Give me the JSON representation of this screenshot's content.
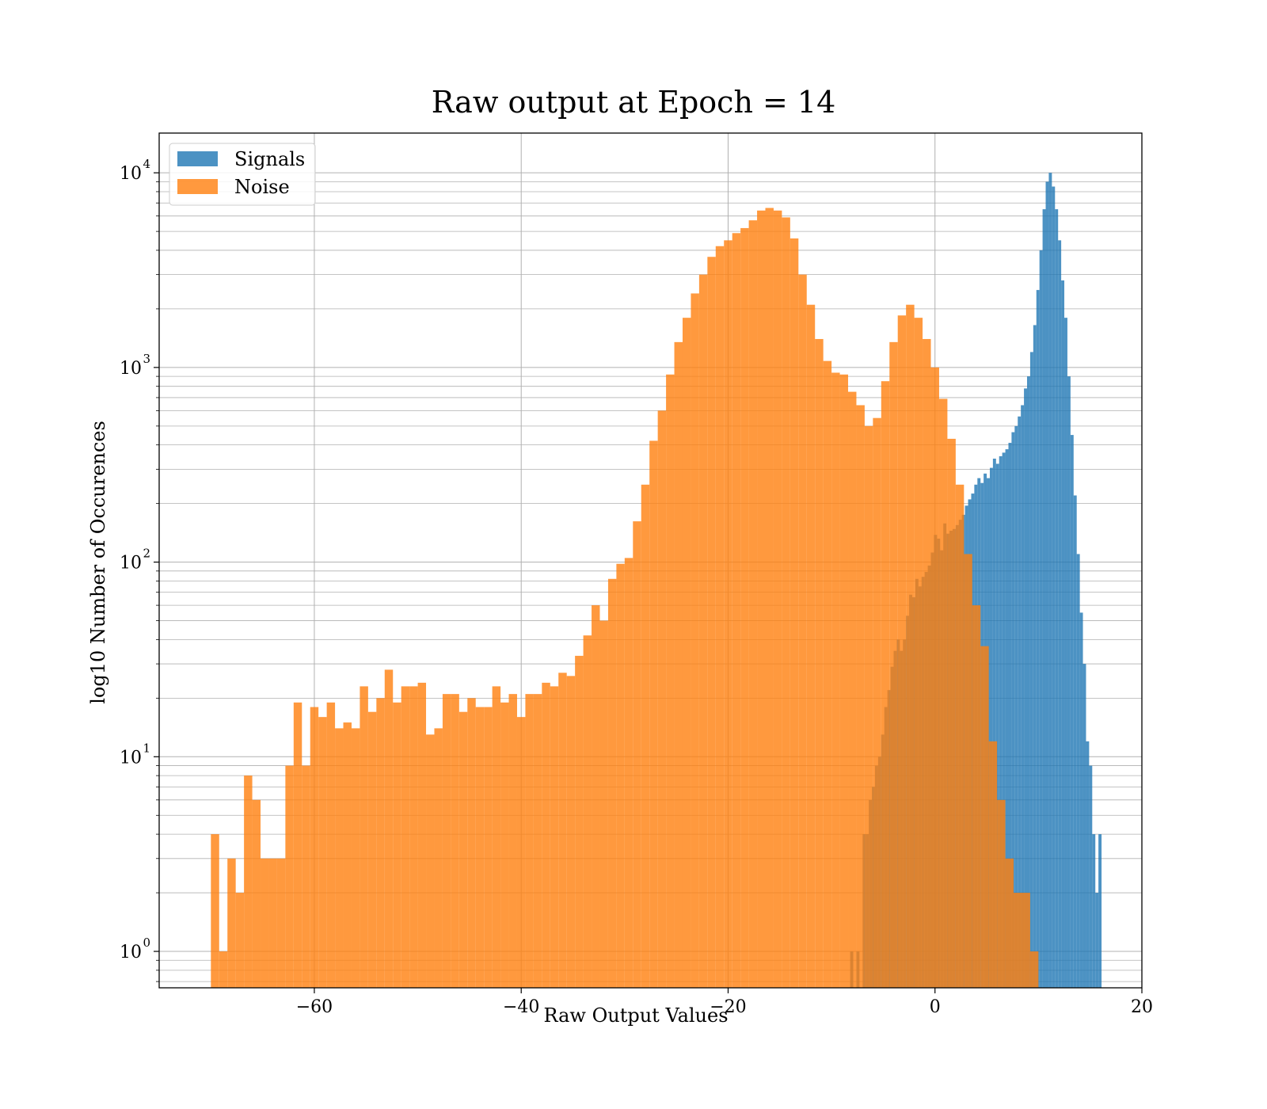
{
  "chart_data": {
    "type": "histogram",
    "title": "Raw output at Epoch = 14",
    "xlabel": "Raw Output Values",
    "ylabel": "log10 Number of Occurences",
    "xlim": [
      -75,
      20
    ],
    "ylim": [
      0.65,
      16000
    ],
    "yscale": "log",
    "grid": true,
    "legend_position": "upper left",
    "x_ticks": [
      {
        "value": -60,
        "label": "−60"
      },
      {
        "value": -40,
        "label": "−40"
      },
      {
        "value": -20,
        "label": "−20"
      },
      {
        "value": 0,
        "label": "0"
      },
      {
        "value": 20,
        "label": "20"
      }
    ],
    "y_ticks": [
      {
        "value": 1,
        "base": "10",
        "exp": "0"
      },
      {
        "value": 10,
        "base": "10",
        "exp": "1"
      },
      {
        "value": 100,
        "base": "10",
        "exp": "2"
      },
      {
        "value": 1000,
        "base": "10",
        "exp": "3"
      },
      {
        "value": 10000,
        "base": "10",
        "exp": "4"
      }
    ],
    "series": [
      {
        "name": "Signals",
        "color": "#1f77b4",
        "opacity": 0.8,
        "bins": [
          [
            -8.2,
            -7.9,
            1
          ],
          [
            -7.9,
            -7.6,
            0
          ],
          [
            -7.6,
            -7.3,
            1
          ],
          [
            -7.3,
            -7.0,
            0
          ],
          [
            -7.0,
            -6.7,
            4
          ],
          [
            -6.7,
            -6.4,
            4
          ],
          [
            -6.4,
            -6.1,
            6
          ],
          [
            -6.1,
            -5.8,
            7
          ],
          [
            -5.8,
            -5.5,
            9
          ],
          [
            -5.5,
            -5.2,
            10
          ],
          [
            -5.2,
            -4.9,
            13
          ],
          [
            -4.9,
            -4.6,
            18
          ],
          [
            -4.6,
            -4.3,
            22
          ],
          [
            -4.3,
            -4.0,
            29
          ],
          [
            -4.0,
            -3.7,
            35
          ],
          [
            -3.7,
            -3.4,
            40
          ],
          [
            -3.4,
            -3.1,
            35
          ],
          [
            -3.1,
            -2.8,
            40
          ],
          [
            -2.8,
            -2.5,
            53
          ],
          [
            -2.5,
            -2.2,
            68
          ],
          [
            -2.2,
            -1.9,
            66
          ],
          [
            -1.9,
            -1.6,
            82
          ],
          [
            -1.6,
            -1.3,
            75
          ],
          [
            -1.3,
            -1.0,
            84
          ],
          [
            -1.0,
            -0.7,
            89
          ],
          [
            -0.7,
            -0.4,
            96
          ],
          [
            -0.4,
            -0.1,
            112
          ],
          [
            -0.1,
            0.2,
            138
          ],
          [
            0.2,
            0.5,
            132
          ],
          [
            0.5,
            0.8,
            115
          ],
          [
            0.8,
            1.1,
            158
          ],
          [
            1.1,
            1.4,
            140
          ],
          [
            1.4,
            1.7,
            145
          ],
          [
            1.7,
            2.0,
            148
          ],
          [
            2.0,
            2.3,
            155
          ],
          [
            2.3,
            2.6,
            165
          ],
          [
            2.6,
            2.9,
            175
          ],
          [
            2.9,
            3.2,
            195
          ],
          [
            3.2,
            3.5,
            210
          ],
          [
            3.5,
            3.8,
            225
          ],
          [
            3.8,
            4.1,
            250
          ],
          [
            4.1,
            4.4,
            270
          ],
          [
            4.4,
            4.7,
            255
          ],
          [
            4.7,
            5.0,
            285
          ],
          [
            5.0,
            5.3,
            270
          ],
          [
            5.3,
            5.6,
            305
          ],
          [
            5.6,
            5.9,
            340
          ],
          [
            5.9,
            6.2,
            320
          ],
          [
            6.2,
            6.5,
            350
          ],
          [
            6.5,
            6.8,
            365
          ],
          [
            6.8,
            7.1,
            380
          ],
          [
            7.1,
            7.4,
            410
          ],
          [
            7.4,
            7.7,
            465
          ],
          [
            7.7,
            8.0,
            500
          ],
          [
            8.0,
            8.3,
            560
          ],
          [
            8.3,
            8.6,
            640
          ],
          [
            8.6,
            8.9,
            780
          ],
          [
            8.9,
            9.2,
            900
          ],
          [
            9.2,
            9.5,
            1200
          ],
          [
            9.5,
            9.8,
            1650
          ],
          [
            9.8,
            10.1,
            2500
          ],
          [
            10.1,
            10.4,
            4000
          ],
          [
            10.4,
            10.7,
            6500
          ],
          [
            10.7,
            11.0,
            9000
          ],
          [
            11.0,
            11.3,
            10000
          ],
          [
            11.3,
            11.6,
            8500
          ],
          [
            11.6,
            11.9,
            6500
          ],
          [
            11.9,
            12.2,
            4500
          ],
          [
            12.2,
            12.5,
            2800
          ],
          [
            12.5,
            12.8,
            1800
          ],
          [
            12.8,
            13.1,
            900
          ],
          [
            13.1,
            13.4,
            450
          ],
          [
            13.4,
            13.7,
            220
          ],
          [
            13.7,
            14.0,
            110
          ],
          [
            14.0,
            14.3,
            55
          ],
          [
            14.3,
            14.6,
            30
          ],
          [
            14.6,
            14.9,
            12
          ],
          [
            14.9,
            15.2,
            9
          ],
          [
            15.2,
            15.5,
            4
          ],
          [
            15.5,
            15.8,
            2
          ],
          [
            15.8,
            16.1,
            4
          ]
        ]
      },
      {
        "name": "Noise",
        "color": "#ff7f0e",
        "opacity": 0.8,
        "bins": [
          [
            -70.0,
            -69.2,
            4
          ],
          [
            -69.2,
            -68.4,
            1
          ],
          [
            -68.4,
            -67.6,
            3
          ],
          [
            -67.6,
            -66.8,
            2
          ],
          [
            -66.8,
            -66.0,
            8
          ],
          [
            -66.0,
            -65.2,
            6
          ],
          [
            -65.2,
            -64.4,
            3
          ],
          [
            -64.4,
            -63.6,
            3
          ],
          [
            -63.6,
            -62.8,
            3
          ],
          [
            -62.8,
            -62.0,
            9
          ],
          [
            -62.0,
            -61.2,
            19
          ],
          [
            -61.2,
            -60.4,
            9
          ],
          [
            -60.4,
            -59.6,
            18
          ],
          [
            -59.6,
            -58.8,
            16
          ],
          [
            -58.8,
            -58.0,
            19
          ],
          [
            -58.0,
            -57.2,
            14
          ],
          [
            -57.2,
            -56.4,
            15
          ],
          [
            -56.4,
            -55.6,
            14
          ],
          [
            -55.6,
            -54.8,
            23
          ],
          [
            -54.8,
            -54.0,
            17
          ],
          [
            -54.0,
            -53.2,
            20
          ],
          [
            -53.2,
            -52.4,
            28
          ],
          [
            -52.4,
            -51.6,
            19
          ],
          [
            -51.6,
            -50.8,
            23
          ],
          [
            -50.8,
            -50.0,
            23
          ],
          [
            -50.0,
            -49.2,
            24
          ],
          [
            -49.2,
            -48.4,
            13
          ],
          [
            -48.4,
            -47.6,
            14
          ],
          [
            -47.6,
            -46.8,
            21
          ],
          [
            -46.8,
            -46.0,
            21
          ],
          [
            -46.0,
            -45.2,
            17
          ],
          [
            -45.2,
            -44.4,
            20
          ],
          [
            -44.4,
            -43.6,
            18
          ],
          [
            -43.6,
            -42.8,
            18
          ],
          [
            -42.8,
            -42.0,
            23
          ],
          [
            -42.0,
            -41.2,
            19
          ],
          [
            -41.2,
            -40.4,
            21
          ],
          [
            -40.4,
            -39.6,
            16
          ],
          [
            -39.6,
            -38.8,
            21
          ],
          [
            -38.8,
            -38.0,
            21
          ],
          [
            -38.0,
            -37.2,
            24
          ],
          [
            -37.2,
            -36.4,
            23
          ],
          [
            -36.4,
            -35.6,
            27
          ],
          [
            -35.6,
            -34.8,
            26
          ],
          [
            -34.8,
            -34.0,
            33
          ],
          [
            -34.0,
            -33.2,
            42
          ],
          [
            -33.2,
            -32.4,
            60
          ],
          [
            -32.4,
            -31.6,
            50
          ],
          [
            -31.6,
            -30.8,
            82
          ],
          [
            -30.8,
            -30.0,
            98
          ],
          [
            -30.0,
            -29.2,
            105
          ],
          [
            -29.2,
            -28.4,
            162
          ],
          [
            -28.4,
            -27.6,
            250
          ],
          [
            -27.6,
            -26.8,
            420
          ],
          [
            -26.8,
            -26.0,
            600
          ],
          [
            -26.0,
            -25.2,
            920
          ],
          [
            -25.2,
            -24.4,
            1350
          ],
          [
            -24.4,
            -23.6,
            1800
          ],
          [
            -23.6,
            -22.8,
            2400
          ],
          [
            -22.8,
            -22.0,
            3000
          ],
          [
            -22.0,
            -21.2,
            3700
          ],
          [
            -21.2,
            -20.4,
            4200
          ],
          [
            -20.4,
            -19.6,
            4500
          ],
          [
            -19.6,
            -18.8,
            4900
          ],
          [
            -18.8,
            -18.0,
            5200
          ],
          [
            -18.0,
            -17.2,
            5700
          ],
          [
            -17.2,
            -16.4,
            6400
          ],
          [
            -16.4,
            -15.6,
            6600
          ],
          [
            -15.6,
            -14.8,
            6400
          ],
          [
            -14.8,
            -14.0,
            5900
          ],
          [
            -14.0,
            -13.2,
            4600
          ],
          [
            -13.2,
            -12.4,
            3000
          ],
          [
            -12.4,
            -11.6,
            2100
          ],
          [
            -11.6,
            -10.8,
            1400
          ],
          [
            -10.8,
            -10.0,
            1080
          ],
          [
            -10.0,
            -9.2,
            940
          ],
          [
            -9.2,
            -8.4,
            920
          ],
          [
            -8.4,
            -7.6,
            750
          ],
          [
            -7.6,
            -6.8,
            640
          ],
          [
            -6.8,
            -6.0,
            500
          ],
          [
            -6.0,
            -5.2,
            550
          ],
          [
            -5.2,
            -4.4,
            850
          ],
          [
            -4.4,
            -3.6,
            1350
          ],
          [
            -3.6,
            -2.8,
            1850
          ],
          [
            -2.8,
            -2.0,
            2100
          ],
          [
            -2.0,
            -1.2,
            1800
          ],
          [
            -1.2,
            -0.4,
            1400
          ],
          [
            -0.4,
            0.4,
            1000
          ],
          [
            0.4,
            1.2,
            690
          ],
          [
            1.2,
            2.0,
            430
          ],
          [
            2.0,
            2.8,
            250
          ],
          [
            2.8,
            3.6,
            110
          ],
          [
            3.6,
            4.4,
            60
          ],
          [
            4.4,
            5.2,
            37
          ],
          [
            5.2,
            6.0,
            12
          ],
          [
            6.0,
            6.8,
            6
          ],
          [
            6.8,
            7.6,
            3
          ],
          [
            7.6,
            8.4,
            2
          ],
          [
            8.4,
            9.2,
            2
          ],
          [
            9.2,
            10.0,
            1
          ]
        ]
      }
    ]
  }
}
